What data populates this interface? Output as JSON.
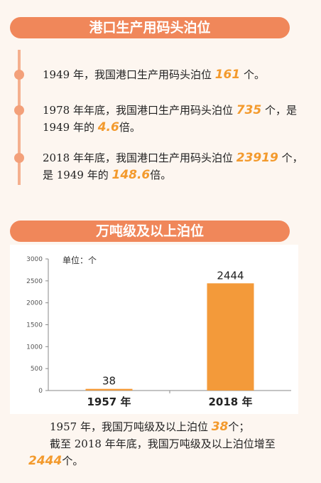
{
  "section1": {
    "title": "港口生产用码头泊位",
    "items": [
      {
        "pre": "1949 年，我国港口生产用码头泊位 ",
        "num": "161",
        "post": " 个。"
      },
      {
        "pre": "1978 年年底，我国港口生产用码头泊位 ",
        "num": "735",
        "mid": " 个，是 1949 年的 ",
        "num2": "4.6",
        "post": "倍。"
      },
      {
        "pre": "2018 年年底，我国港口生产用码头泊位 ",
        "num": "23919",
        "mid": " 个，是 1949 年的 ",
        "num2": "148.6",
        "post": "倍。"
      }
    ]
  },
  "section2": {
    "title": "万吨级及以上泊位"
  },
  "chart_data": {
    "type": "bar",
    "categories": [
      "1957 年",
      "2018 年"
    ],
    "values": [
      38,
      2444
    ],
    "data_labels": [
      "38",
      "2444"
    ],
    "unit_label": "单位：个",
    "ylim": [
      0,
      3000
    ],
    "yticks": [
      0,
      500,
      1000,
      1500,
      2000,
      2500,
      3000
    ],
    "grid": false,
    "bar_color": "#f39a3a"
  },
  "summary": {
    "line1_pre": "1957 年，我国万吨级及以上泊位 ",
    "line1_num": "38",
    "line1_post": "个；",
    "line2_pre": "截至 2018 年年底，我国万吨级及以上泊位增至 ",
    "line2_num": "2444",
    "line2_post": "个。"
  },
  "colors": {
    "banner": "#f0875a",
    "highlight": "#f39a2d"
  }
}
